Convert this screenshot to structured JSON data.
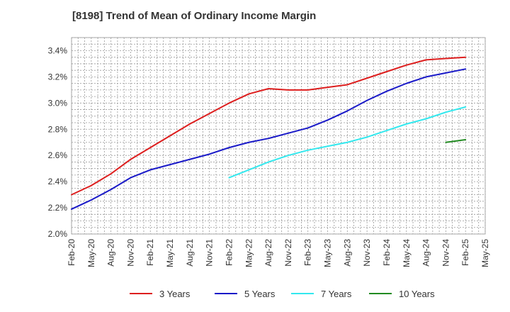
{
  "chart_data": {
    "type": "line",
    "title": "[8198]  Trend of Mean of Ordinary Income Margin",
    "xlabel": "",
    "ylabel": "",
    "x": [
      "Feb-20",
      "May-20",
      "Aug-20",
      "Nov-20",
      "Feb-21",
      "May-21",
      "Aug-21",
      "Nov-21",
      "Feb-22",
      "May-22",
      "Aug-22",
      "Nov-22",
      "Feb-23",
      "May-23",
      "Aug-23",
      "Nov-23",
      "Feb-24",
      "May-24",
      "Aug-24",
      "Nov-24",
      "Feb-25"
    ],
    "x_ticks": [
      "Feb-20",
      "May-20",
      "Aug-20",
      "Nov-20",
      "Feb-21",
      "May-21",
      "Aug-21",
      "Nov-21",
      "Feb-22",
      "May-22",
      "Aug-22",
      "Nov-22",
      "Feb-23",
      "May-23",
      "Aug-23",
      "Nov-23",
      "Feb-24",
      "May-24",
      "Aug-24",
      "Nov-24",
      "Feb-25",
      "May-25"
    ],
    "y_ticks": [
      "2.0%",
      "2.2%",
      "2.4%",
      "2.6%",
      "2.8%",
      "3.0%",
      "3.2%",
      "3.4%"
    ],
    "ylim": [
      2.0,
      3.5
    ],
    "y_unit": "%",
    "grid": true,
    "legend_position": "bottom",
    "series": [
      {
        "name": "3 Years",
        "color": "#dd1e1e",
        "values": [
          2.3,
          2.37,
          2.46,
          2.57,
          2.66,
          2.75,
          2.84,
          2.92,
          3.0,
          3.07,
          3.11,
          3.1,
          3.1,
          3.12,
          3.14,
          3.19,
          3.24,
          3.29,
          3.33,
          3.34,
          3.35
        ]
      },
      {
        "name": "5 Years",
        "color": "#1a1ac8",
        "values": [
          2.19,
          2.26,
          2.34,
          2.43,
          2.49,
          2.53,
          2.57,
          2.61,
          2.66,
          2.7,
          2.73,
          2.77,
          2.81,
          2.87,
          2.94,
          3.02,
          3.09,
          3.15,
          3.2,
          3.23,
          3.26
        ]
      },
      {
        "name": "7 Years",
        "color": "#33e8ee",
        "values": [
          null,
          null,
          null,
          null,
          null,
          null,
          null,
          null,
          2.43,
          2.49,
          2.55,
          2.6,
          2.64,
          2.67,
          2.7,
          2.74,
          2.79,
          2.84,
          2.88,
          2.93,
          2.97
        ]
      },
      {
        "name": "10 Years",
        "color": "#228b22",
        "values": [
          null,
          null,
          null,
          null,
          null,
          null,
          null,
          null,
          null,
          null,
          null,
          null,
          null,
          null,
          null,
          null,
          null,
          null,
          null,
          2.7,
          2.72
        ]
      }
    ]
  }
}
